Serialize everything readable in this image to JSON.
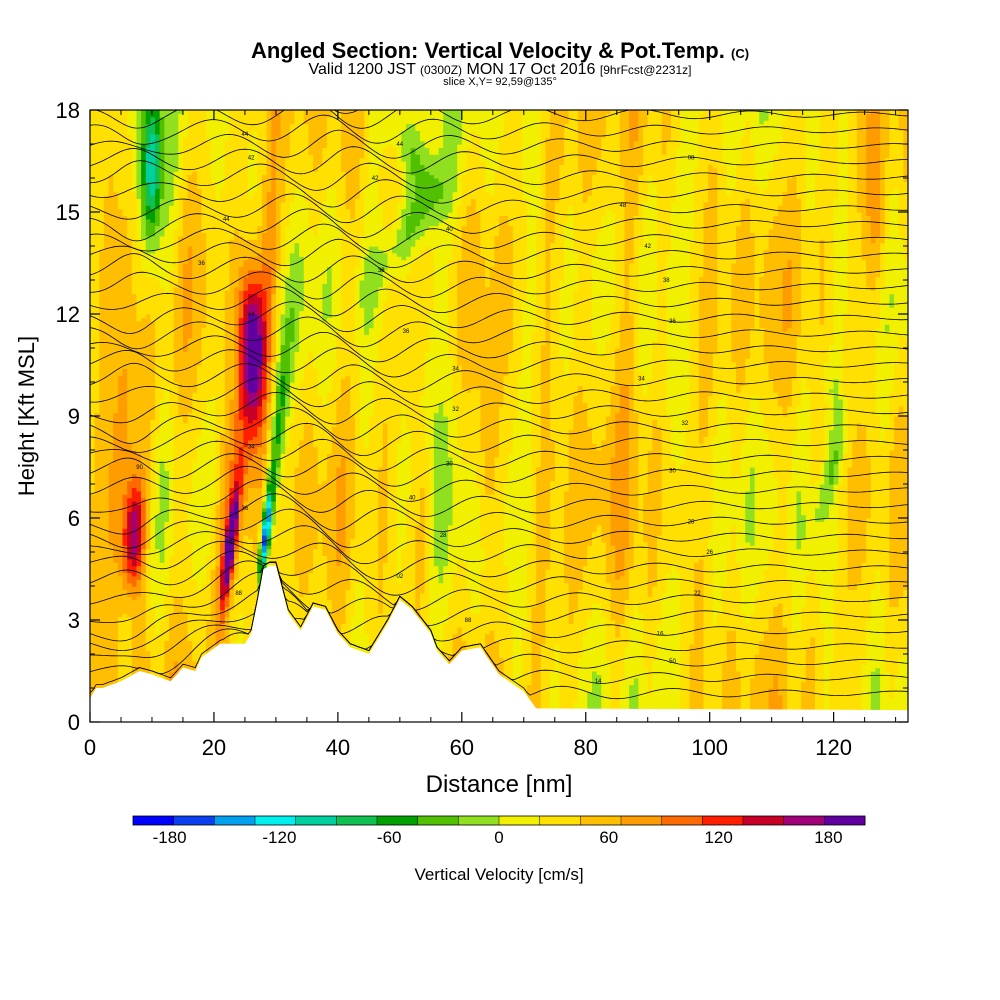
{
  "header": {
    "title_main": "Angled Section: Vertical Velocity & Pot.Temp.",
    "title_mark": "(C)",
    "valid_label": "Valid 1200 JST",
    "valid_z": "(0300Z)",
    "valid_date": "MON 17 Oct 2016",
    "forecast": "[9hrFcst@2231z]",
    "slice": "slice X,Y= 92,59@135°"
  },
  "chart_data": {
    "type": "heatmap",
    "title": "Angled Section: Vertical Velocity & Pot.Temp.",
    "xlabel": "Distance [nm]",
    "ylabel": "Height [Kft MSL]",
    "xlim": [
      0,
      132
    ],
    "ylim": [
      0,
      18
    ],
    "x_ticks": [
      0,
      20,
      40,
      60,
      80,
      100,
      120
    ],
    "y_ticks": [
      0,
      3,
      6,
      9,
      12,
      15,
      18
    ],
    "grid": false,
    "colorbar": {
      "label": "Vertical Velocity [cm/s]",
      "min": -200,
      "max": 200,
      "step": 20,
      "tick_values": [
        -180,
        -120,
        -60,
        0,
        60,
        120,
        180
      ],
      "colors": [
        "#0000ff",
        "#0a40f0",
        "#00a0f0",
        "#00f0f0",
        "#00d0a0",
        "#10c050",
        "#00a000",
        "#50c000",
        "#90e020",
        "#f0f000",
        "#ffe000",
        "#ffbf00",
        "#ff9d00",
        "#ff6a00",
        "#ff1e00",
        "#c80028",
        "#a00078",
        "#6000a0"
      ]
    },
    "vertical_velocity_features": [
      {
        "x": 7,
        "y": 5.5,
        "value": 110
      },
      {
        "x": 10,
        "y": 16.5,
        "value": -130
      },
      {
        "x": 26,
        "y": 11.5,
        "value": 125
      },
      {
        "x": 23,
        "y": 5.0,
        "value": 170
      },
      {
        "x": 29,
        "y": 5.0,
        "value": -170
      },
      {
        "x": 50,
        "y": 14.5,
        "value": -70
      },
      {
        "x": 64,
        "y": 9.0,
        "value": 40
      },
      {
        "x": 127,
        "y": 15.0,
        "value": 50
      }
    ],
    "terrain": {
      "x": [
        0,
        1,
        2,
        5,
        8,
        10,
        13,
        15,
        17,
        18,
        21,
        25,
        26,
        27,
        28,
        29,
        30,
        31,
        32,
        34,
        36,
        38,
        40,
        42,
        45,
        48,
        50,
        52,
        55,
        56,
        58,
        60,
        63,
        66,
        70,
        72,
        132
      ],
      "height": [
        0.7,
        1.0,
        1.0,
        1.2,
        1.5,
        1.4,
        1.2,
        1.6,
        1.5,
        1.9,
        2.3,
        2.3,
        2.6,
        3.5,
        4.5,
        4.6,
        4.6,
        3.9,
        3.2,
        2.7,
        3.4,
        3.3,
        2.6,
        2.2,
        2.0,
        2.9,
        3.6,
        3.3,
        2.6,
        2.1,
        1.7,
        2.1,
        2.2,
        1.4,
        0.9,
        0.4,
        0.35
      ]
    },
    "theta_labels": [
      {
        "x": 8,
        "y": 7.5,
        "text": "90"
      },
      {
        "x": 23,
        "y": 5.3,
        "text": "92"
      },
      {
        "x": 24,
        "y": 3.8,
        "text": "88"
      },
      {
        "x": 25,
        "y": 6.3,
        "text": "36"
      },
      {
        "x": 26,
        "y": 8.1,
        "text": "34"
      },
      {
        "x": 26,
        "y": 12.0,
        "text": "44"
      },
      {
        "x": 18,
        "y": 13.5,
        "text": "36"
      },
      {
        "x": 22,
        "y": 14.8,
        "text": "44"
      },
      {
        "x": 25,
        "y": 17.3,
        "text": "44"
      },
      {
        "x": 26,
        "y": 16.6,
        "text": "42"
      },
      {
        "x": 50,
        "y": 17.0,
        "text": "44"
      },
      {
        "x": 46,
        "y": 16.0,
        "text": "42"
      },
      {
        "x": 58,
        "y": 14.5,
        "text": "40"
      },
      {
        "x": 47,
        "y": 13.3,
        "text": "38"
      },
      {
        "x": 51,
        "y": 11.5,
        "text": "36"
      },
      {
        "x": 59,
        "y": 10.4,
        "text": "34"
      },
      {
        "x": 59,
        "y": 9.2,
        "text": "32"
      },
      {
        "x": 58,
        "y": 7.6,
        "text": "30"
      },
      {
        "x": 52,
        "y": 6.6,
        "text": "40"
      },
      {
        "x": 57,
        "y": 5.5,
        "text": "28"
      },
      {
        "x": 50,
        "y": 4.3,
        "text": "02"
      },
      {
        "x": 61,
        "y": 3.0,
        "text": "88"
      },
      {
        "x": 97,
        "y": 16.6,
        "text": "08"
      },
      {
        "x": 86,
        "y": 15.2,
        "text": "48"
      },
      {
        "x": 90,
        "y": 14.0,
        "text": "42"
      },
      {
        "x": 93,
        "y": 13.0,
        "text": "38"
      },
      {
        "x": 94,
        "y": 11.8,
        "text": "36"
      },
      {
        "x": 89,
        "y": 10.1,
        "text": "34"
      },
      {
        "x": 96,
        "y": 8.8,
        "text": "32"
      },
      {
        "x": 94,
        "y": 7.4,
        "text": "30"
      },
      {
        "x": 97,
        "y": 5.9,
        "text": "28"
      },
      {
        "x": 100,
        "y": 5.0,
        "text": "26"
      },
      {
        "x": 98,
        "y": 3.8,
        "text": "22"
      },
      {
        "x": 92,
        "y": 2.6,
        "text": "16"
      },
      {
        "x": 94,
        "y": 1.8,
        "text": "50"
      },
      {
        "x": 82,
        "y": 1.2,
        "text": "14"
      }
    ]
  }
}
